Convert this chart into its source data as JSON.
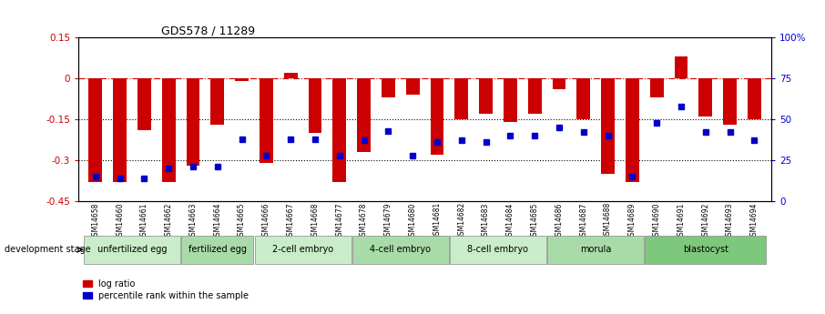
{
  "title": "GDS578 / 11289",
  "samples": [
    "GSM14658",
    "GSM14660",
    "GSM14661",
    "GSM14662",
    "GSM14663",
    "GSM14664",
    "GSM14665",
    "GSM14666",
    "GSM14667",
    "GSM14668",
    "GSM14677",
    "GSM14678",
    "GSM14679",
    "GSM14680",
    "GSM14681",
    "GSM14682",
    "GSM14683",
    "GSM14684",
    "GSM14685",
    "GSM14686",
    "GSM14687",
    "GSM14688",
    "GSM14689",
    "GSM14690",
    "GSM14691",
    "GSM14692",
    "GSM14693",
    "GSM14694"
  ],
  "log_ratio": [
    -0.38,
    -0.38,
    -0.19,
    -0.38,
    -0.32,
    -0.17,
    -0.01,
    -0.31,
    0.02,
    -0.2,
    -0.38,
    -0.27,
    -0.07,
    -0.06,
    -0.28,
    -0.15,
    -0.13,
    -0.16,
    -0.13,
    -0.04,
    -0.15,
    -0.35,
    -0.38,
    -0.07,
    0.08,
    -0.14,
    -0.17,
    -0.15
  ],
  "percentile_rank": [
    15,
    14,
    14,
    20,
    21,
    21,
    38,
    28,
    38,
    38,
    28,
    37,
    43,
    28,
    36,
    37,
    36,
    40,
    40,
    45,
    42,
    40,
    15,
    48,
    58,
    42,
    42,
    37
  ],
  "stages": [
    {
      "label": "unfertilized egg",
      "start": 0,
      "end": 4,
      "color": "#c8edc8"
    },
    {
      "label": "fertilized egg",
      "start": 4,
      "end": 7,
      "color": "#a8dba8"
    },
    {
      "label": "2-cell embryo",
      "start": 7,
      "end": 11,
      "color": "#c8edc8"
    },
    {
      "label": "4-cell embryo",
      "start": 11,
      "end": 15,
      "color": "#a8dba8"
    },
    {
      "label": "8-cell embryo",
      "start": 15,
      "end": 19,
      "color": "#c8edc8"
    },
    {
      "label": "morula",
      "start": 19,
      "end": 23,
      "color": "#a8dba8"
    },
    {
      "label": "blastocyst",
      "start": 23,
      "end": 28,
      "color": "#7dc87d"
    }
  ],
  "bar_color": "#cc0000",
  "marker_color": "#0000cc",
  "ylim_left": [
    -0.45,
    0.15
  ],
  "yticks_left": [
    0.15,
    0.0,
    -0.15,
    -0.3,
    -0.45
  ],
  "ylim_right": [
    0,
    100
  ],
  "yticks_right": [
    100,
    75,
    50,
    25,
    0
  ],
  "hline_color": "#cc0000",
  "dotline_color": "#000000"
}
